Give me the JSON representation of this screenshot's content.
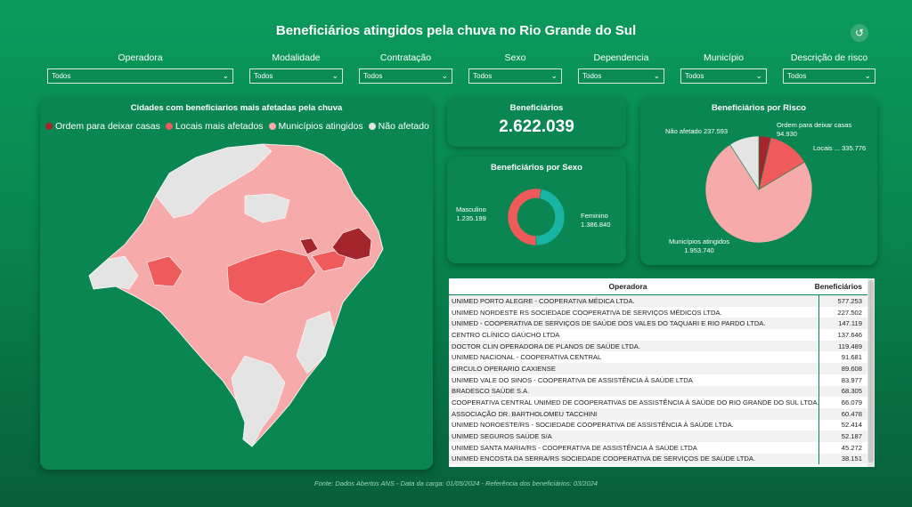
{
  "title": "Beneficiários atingidos pela chuva no Rio Grande do Sul",
  "reset_icon": "undo-icon",
  "filters": [
    {
      "label": "Operadora",
      "value": "Todos"
    },
    {
      "label": "Modalidade",
      "value": "Todos"
    },
    {
      "label": "Contratação",
      "value": "Todos"
    },
    {
      "label": "Sexo",
      "value": "Todos"
    },
    {
      "label": "Dependencia",
      "value": "Todos"
    },
    {
      "label": "Município",
      "value": "Todos"
    },
    {
      "label": "Descrição de risco",
      "value": "Todos"
    }
  ],
  "map_card": {
    "title": "Cidades com beneficiarios mais afetadas pela chuva",
    "legend": [
      {
        "label": "Ordem para deixar casas",
        "color": "#a4262c"
      },
      {
        "label": "Locais mais afetados",
        "color": "#ef5b5b"
      },
      {
        "label": "Municípios atingidos",
        "color": "#f6aaaa"
      },
      {
        "label": "Não afetado",
        "color": "#e4e4e4"
      }
    ]
  },
  "kpi": {
    "title": "Beneficiários",
    "value": "2.622.039"
  },
  "sexo_card": {
    "title": "Beneficiários por Sexo",
    "chart_data": {
      "type": "pie",
      "slices": [
        {
          "label": "Masculino",
          "value": 1235199,
          "value_label": "1.235.199",
          "color": "#19b5a3"
        },
        {
          "label": "Feminino",
          "value": 1386840,
          "value_label": "1.386.840",
          "color": "#ef5b5b"
        }
      ]
    }
  },
  "risco_card": {
    "title": "Beneficiários por Risco",
    "chart_data": {
      "type": "pie",
      "slices": [
        {
          "label": "Ordem para deixar casas",
          "value": 94930,
          "value_label": "94.930",
          "color": "#a4262c"
        },
        {
          "label": "Locais ...",
          "value": 335776,
          "value_label": "335.776",
          "color": "#ef5b5b"
        },
        {
          "label": "Municípios atingidos",
          "value": 1953740,
          "value_label": "1.953.740",
          "color": "#f6aaaa"
        },
        {
          "label": "Não afetado",
          "value": 237593,
          "value_label": "237.593",
          "color": "#e4e4e4"
        }
      ]
    }
  },
  "table": {
    "col_operadora": "Operadora",
    "col_beneficiarios": "Beneficiários",
    "rows": [
      {
        "operadora": "UNIMED PORTO ALEGRE - COOPERATIVA MÉDICA LTDA.",
        "beneficiarios": "577.253"
      },
      {
        "operadora": "UNIMED NORDESTE RS SOCIEDADE COOPERATIVA DE SERVIÇOS MÉDICOS LTDA.",
        "beneficiarios": "227.502"
      },
      {
        "operadora": "UNIMED - COOPERATIVA DE SERVIÇOS DE SAÚDE DOS VALES DO TAQUARI E RIO PARDO LTDA.",
        "beneficiarios": "147.119"
      },
      {
        "operadora": "CENTRO CLÍNICO GAÚCHO LTDA",
        "beneficiarios": "137.646"
      },
      {
        "operadora": "DOCTOR CLIN OPERADORA DE PLANOS DE SAÚDE LTDA.",
        "beneficiarios": "119.489"
      },
      {
        "operadora": "UNIMED NACIONAL - COOPERATIVA CENTRAL",
        "beneficiarios": "91.681"
      },
      {
        "operadora": "CIRCULO OPERARIO CAXIENSE",
        "beneficiarios": "89.608"
      },
      {
        "operadora": "UNIMED VALE DO SINOS - COOPERATIVA DE ASSISTÊNCIA À SAÚDE LTDA",
        "beneficiarios": "83.977"
      },
      {
        "operadora": "BRADESCO SAÚDE S.A.",
        "beneficiarios": "68.305"
      },
      {
        "operadora": "COOPERATIVA CENTRAL UNIMED DE COOPERATIVAS DE ASSISTÊNCIA À SAÚDE DO RIO GRANDE DO SUL LTDA.",
        "beneficiarios": "66.079"
      },
      {
        "operadora": "ASSOCIAÇÃO DR. BARTHOLOMEU TACCHINI",
        "beneficiarios": "60.478"
      },
      {
        "operadora": "UNIMED NOROESTE/RS - SOCIEDADE COOPERATIVA DE ASSISTÊNCIA À SAÚDE LTDA.",
        "beneficiarios": "52.414"
      },
      {
        "operadora": "UNIMED SEGUROS SAÚDE S/A",
        "beneficiarios": "52.187"
      },
      {
        "operadora": "UNIMED SANTA MARIA/RS - COOPERATIVA DE ASSISTÊNCIA À SAÚDE LTDA",
        "beneficiarios": "45.272"
      },
      {
        "operadora": "UNIMED ENCOSTA DA SERRA/RS SOCIEDADE COOPERATIVA DE SERVIÇOS DE SAÚDE LTDA.",
        "beneficiarios": "38.151"
      }
    ]
  },
  "footer": "Fonte: Dados Abertos ANS - Data da carga: 01/05/2024 - Referência dos beneficiários: 03/2024"
}
